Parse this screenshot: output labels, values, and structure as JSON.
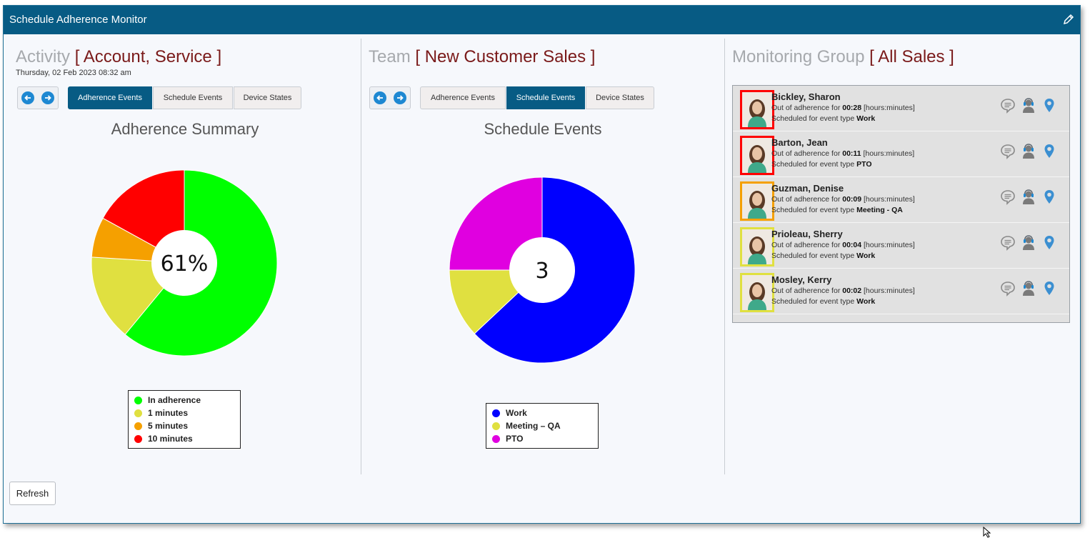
{
  "window": {
    "title": "Schedule Adherence Monitor"
  },
  "panels": [
    {
      "heading_label": "Activity",
      "heading_value": "[ Account, Service  ]",
      "date": "Thursday, 02 Feb 2023 08:32 am",
      "tabs": [
        "Adherence Events",
        "Schedule Events",
        "Device States"
      ],
      "active_tab": 0
    },
    {
      "heading_label": "Team",
      "heading_value": "[ New Customer Sales ]",
      "tabs": [
        "Adherence Events",
        "Schedule Events",
        "Device States"
      ],
      "active_tab": 1
    },
    {
      "heading_label": "Monitoring Group",
      "heading_value": "[ All Sales ]"
    }
  ],
  "chart_data": [
    {
      "type": "pie",
      "title": "Adherence Summary",
      "center_label": "61%",
      "categories": [
        "In adherence",
        "1 minutes",
        "5 minutes",
        "10 minutes"
      ],
      "values": [
        61,
        15,
        7,
        17
      ],
      "colors": [
        "#00ff00",
        "#e0e040",
        "#f5a000",
        "#ff0000"
      ],
      "legend": "bottom"
    },
    {
      "type": "pie",
      "title": "Schedule Events",
      "center_label": "3",
      "categories": [
        "Work",
        "Meeting – QA",
        "PTO"
      ],
      "values": [
        63,
        12,
        25
      ],
      "colors": [
        "#0000ff",
        "#e0e040",
        "#e000e0"
      ],
      "legend": "bottom"
    }
  ],
  "agents": [
    {
      "name": "Bickley, Sharon",
      "prefix": "Out of adherence for",
      "time": "00:28",
      "unit": "[hours:minutes]",
      "sched_prefix": "Scheduled for event type",
      "event": "Work",
      "status_color": "#ff0000"
    },
    {
      "name": "Barton, Jean",
      "prefix": "Out of adherence for",
      "time": "00:11",
      "unit": "[hours:minutes]",
      "sched_prefix": "Scheduled for event type",
      "event": "PTO",
      "status_color": "#ff0000"
    },
    {
      "name": "Guzman, Denise",
      "prefix": "Out of adherence for",
      "time": "00:09",
      "unit": "[hours:minutes]",
      "sched_prefix": "Scheduled for event type",
      "event": "Meeting - QA",
      "status_color": "#f5a000"
    },
    {
      "name": "Prioleau, Sherry",
      "prefix": "Out of adherence for",
      "time": "00:04",
      "unit": "[hours:minutes]",
      "sched_prefix": "Scheduled for event type",
      "event": "Work",
      "status_color": "#e0e040"
    },
    {
      "name": "Mosley, Kerry",
      "prefix": "Out of adherence for",
      "time": "00:02",
      "unit": "[hours:minutes]",
      "sched_prefix": "Scheduled for event type",
      "event": "Work",
      "status_color": "#e0e040"
    }
  ],
  "agent_icons": [
    "chat-icon",
    "agent-headset-icon",
    "location-pin-icon"
  ],
  "footer": {
    "refresh_label": "Refresh"
  }
}
